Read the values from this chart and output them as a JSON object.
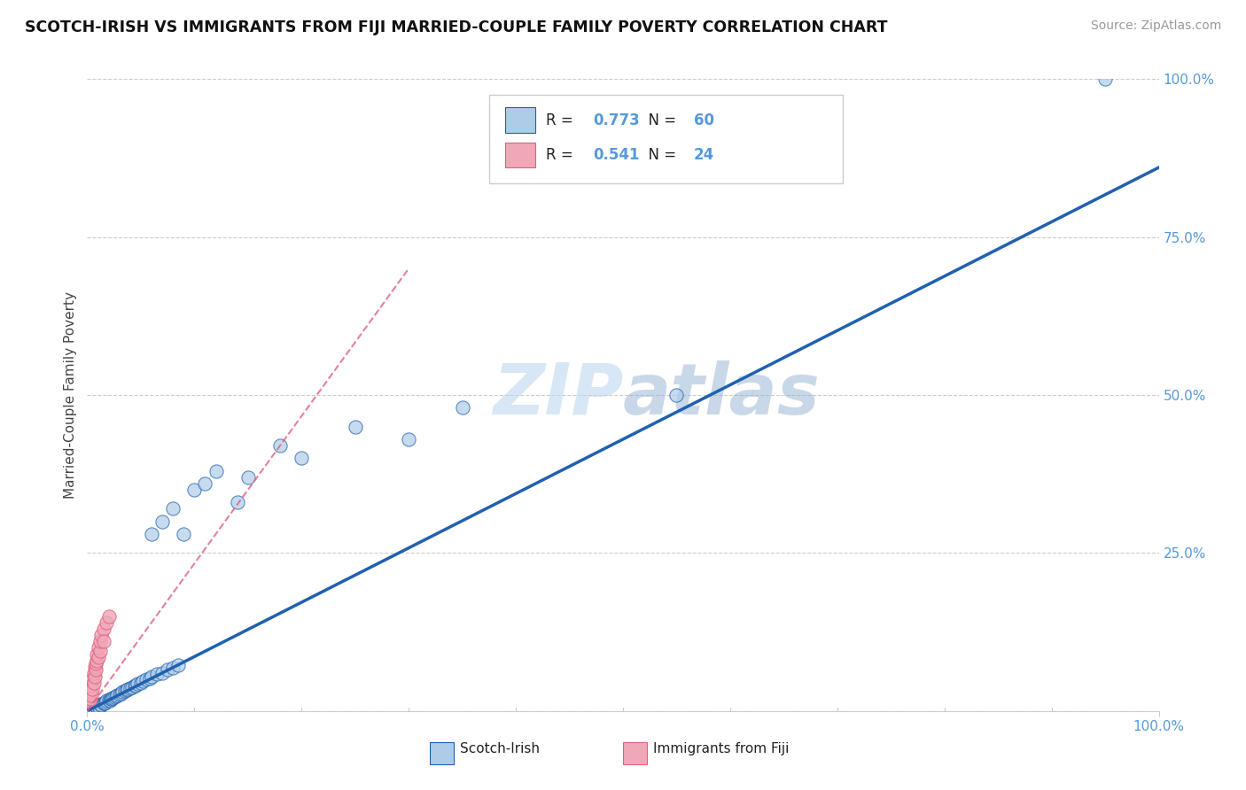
{
  "title": "SCOTCH-IRISH VS IMMIGRANTS FROM FIJI MARRIED-COUPLE FAMILY POVERTY CORRELATION CHART",
  "source": "Source: ZipAtlas.com",
  "ylabel": "Married-Couple Family Poverty",
  "xlim": [
    0.0,
    1.0
  ],
  "ylim": [
    0.0,
    1.0
  ],
  "ytick_positions": [
    0.0,
    0.25,
    0.5,
    0.75,
    1.0
  ],
  "ytick_labels": [
    "",
    "25.0%",
    "50.0%",
    "75.0%",
    "100.0%"
  ],
  "r_scotch_irish": 0.773,
  "n_scotch_irish": 60,
  "r_fiji": 0.541,
  "n_fiji": 24,
  "scotch_irish_color": "#aecce8",
  "fiji_color": "#f0a8b8",
  "trendline_scotch_color": "#2060b0",
  "trendline_fiji_color": "#e06080",
  "watermark_zip": "ZIP",
  "watermark_atlas": "atlas",
  "background_color": "#ffffff",
  "grid_color": "#cccccc",
  "tick_color": "#5599dd",
  "scotch_irish_points": [
    [
      0.003,
      0.004
    ],
    [
      0.004,
      0.005
    ],
    [
      0.005,
      0.003
    ],
    [
      0.006,
      0.006
    ],
    [
      0.007,
      0.004
    ],
    [
      0.008,
      0.008
    ],
    [
      0.009,
      0.007
    ],
    [
      0.01,
      0.009
    ],
    [
      0.011,
      0.006
    ],
    [
      0.012,
      0.011
    ],
    [
      0.013,
      0.01
    ],
    [
      0.015,
      0.013
    ],
    [
      0.016,
      0.012
    ],
    [
      0.017,
      0.014
    ],
    [
      0.018,
      0.016
    ],
    [
      0.02,
      0.018
    ],
    [
      0.021,
      0.016
    ],
    [
      0.022,
      0.019
    ],
    [
      0.023,
      0.02
    ],
    [
      0.024,
      0.021
    ],
    [
      0.025,
      0.022
    ],
    [
      0.027,
      0.024
    ],
    [
      0.028,
      0.025
    ],
    [
      0.03,
      0.027
    ],
    [
      0.032,
      0.028
    ],
    [
      0.033,
      0.03
    ],
    [
      0.035,
      0.032
    ],
    [
      0.037,
      0.034
    ],
    [
      0.038,
      0.035
    ],
    [
      0.04,
      0.036
    ],
    [
      0.042,
      0.038
    ],
    [
      0.044,
      0.04
    ],
    [
      0.045,
      0.041
    ],
    [
      0.047,
      0.043
    ],
    [
      0.05,
      0.045
    ],
    [
      0.052,
      0.047
    ],
    [
      0.055,
      0.05
    ],
    [
      0.058,
      0.052
    ],
    [
      0.06,
      0.055
    ],
    [
      0.065,
      0.058
    ],
    [
      0.07,
      0.06
    ],
    [
      0.075,
      0.065
    ],
    [
      0.08,
      0.068
    ],
    [
      0.085,
      0.072
    ],
    [
      0.06,
      0.28
    ],
    [
      0.07,
      0.3
    ],
    [
      0.08,
      0.32
    ],
    [
      0.09,
      0.28
    ],
    [
      0.1,
      0.35
    ],
    [
      0.11,
      0.36
    ],
    [
      0.12,
      0.38
    ],
    [
      0.14,
      0.33
    ],
    [
      0.15,
      0.37
    ],
    [
      0.18,
      0.42
    ],
    [
      0.2,
      0.4
    ],
    [
      0.25,
      0.45
    ],
    [
      0.3,
      0.43
    ],
    [
      0.35,
      0.48
    ],
    [
      0.55,
      0.5
    ],
    [
      0.95,
      1.0
    ]
  ],
  "fiji_points": [
    [
      0.002,
      0.015
    ],
    [
      0.003,
      0.02
    ],
    [
      0.003,
      0.03
    ],
    [
      0.004,
      0.025
    ],
    [
      0.004,
      0.04
    ],
    [
      0.005,
      0.05
    ],
    [
      0.005,
      0.035
    ],
    [
      0.006,
      0.045
    ],
    [
      0.006,
      0.06
    ],
    [
      0.007,
      0.055
    ],
    [
      0.007,
      0.07
    ],
    [
      0.008,
      0.065
    ],
    [
      0.008,
      0.075
    ],
    [
      0.009,
      0.08
    ],
    [
      0.009,
      0.09
    ],
    [
      0.01,
      0.085
    ],
    [
      0.01,
      0.1
    ],
    [
      0.012,
      0.095
    ],
    [
      0.012,
      0.11
    ],
    [
      0.013,
      0.12
    ],
    [
      0.015,
      0.13
    ],
    [
      0.015,
      0.11
    ],
    [
      0.018,
      0.14
    ],
    [
      0.02,
      0.15
    ]
  ],
  "scotch_irish_trendline": [
    0.0,
    0.86
  ],
  "fiji_trendline_x": [
    0.0,
    0.3
  ],
  "fiji_trendline_y": [
    0.0,
    0.7
  ]
}
